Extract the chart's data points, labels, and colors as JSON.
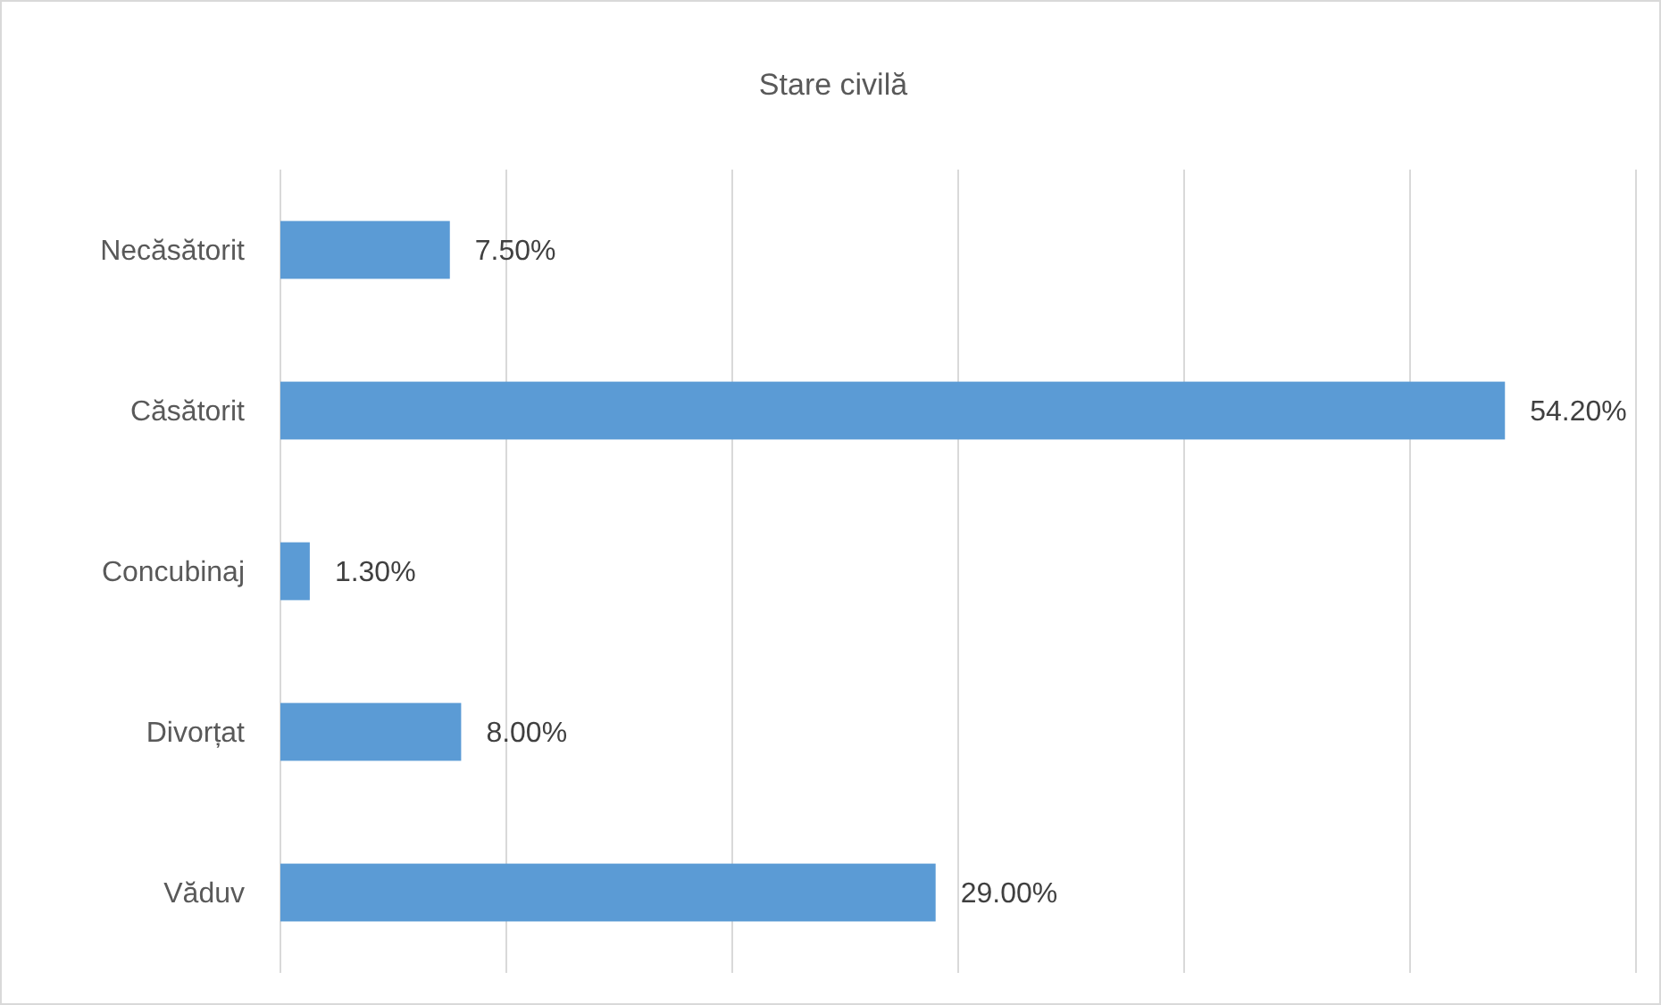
{
  "chart_data": {
    "type": "bar",
    "orientation": "horizontal",
    "title": "Stare civilă",
    "categories": [
      "Necăsătorit",
      "Căsătorit",
      "Concubinaj",
      "Divorțat",
      "Văduv"
    ],
    "values": [
      7.5,
      54.2,
      1.3,
      8.0,
      29.0
    ],
    "value_labels": [
      "7.50%",
      "54.20%",
      "1.30%",
      "8.00%",
      "29.00%"
    ],
    "color": "#5b9bd5",
    "xlim": [
      0,
      60
    ],
    "xticks": [
      {
        "value": 0,
        "label": null
      },
      {
        "value": 10,
        "label": null
      },
      {
        "value": 20,
        "label": null
      },
      {
        "value": 30,
        "label": null
      },
      {
        "value": 40,
        "label": null
      },
      {
        "value": 50,
        "label": null
      },
      {
        "value": 60,
        "label": null
      }
    ],
    "grid": "x",
    "tick_labels": "y"
  }
}
